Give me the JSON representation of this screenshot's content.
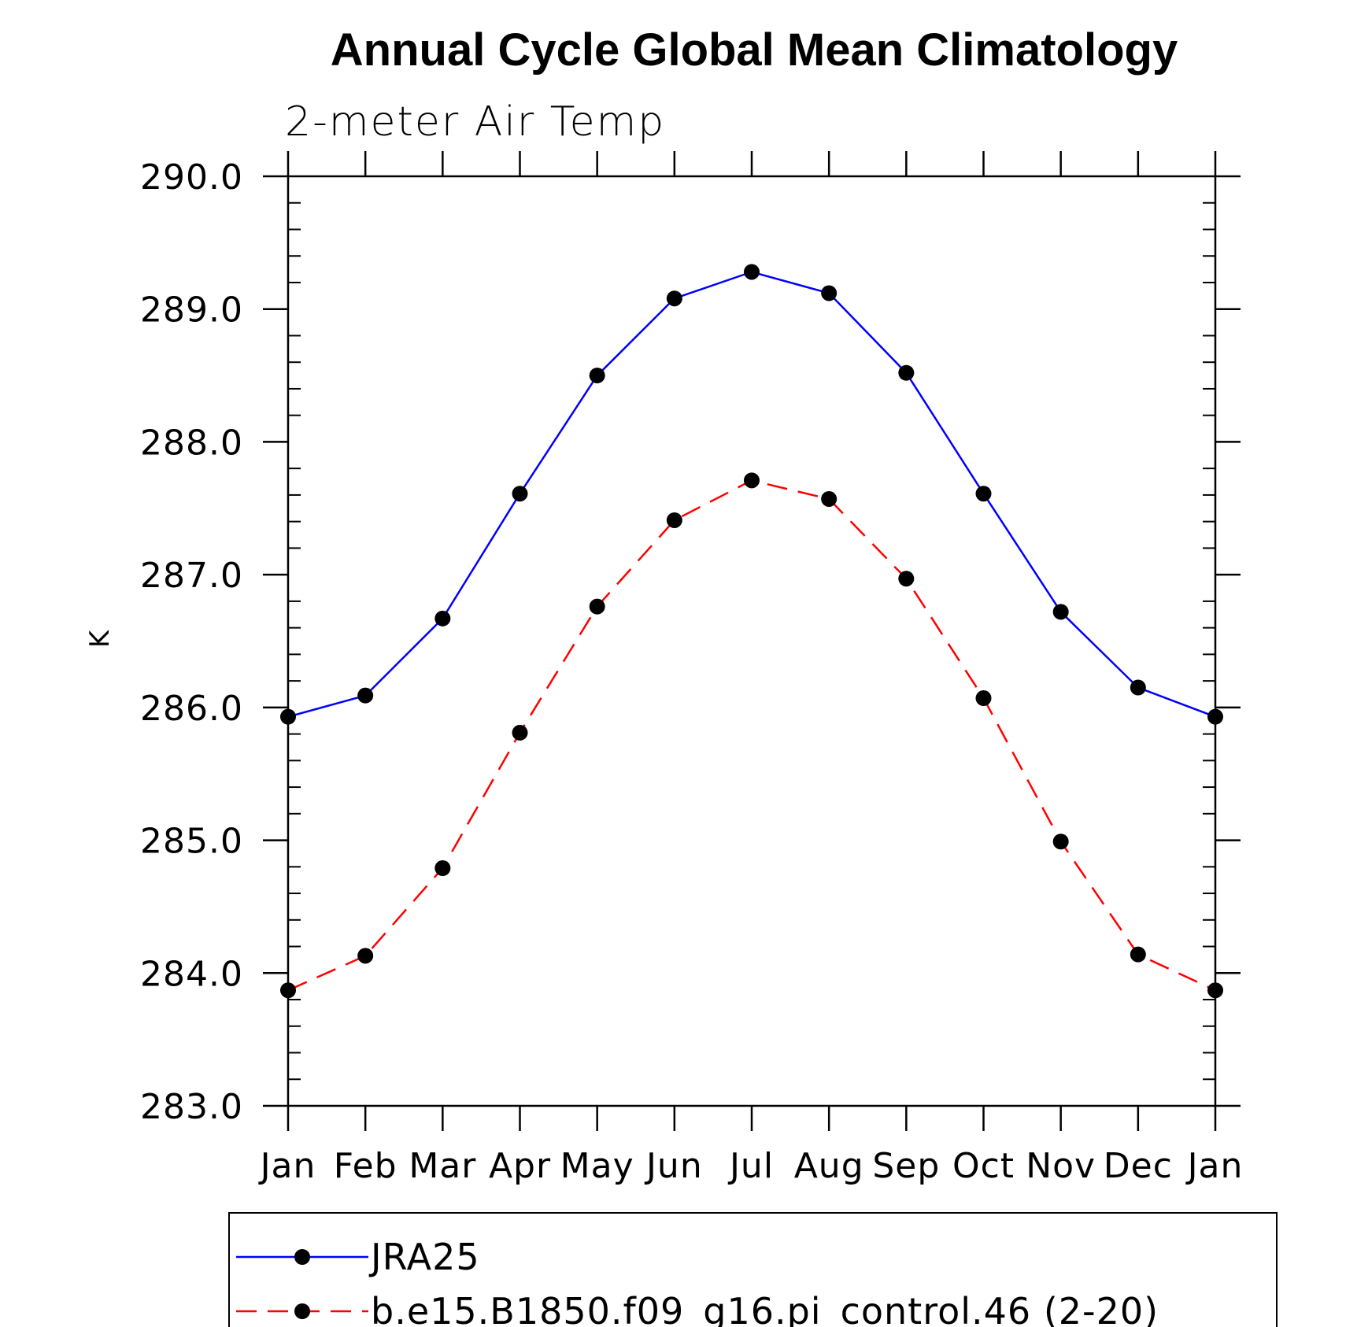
{
  "chart_data": {
    "type": "line",
    "title": "Annual Cycle Global Mean Climatology",
    "subtitle": "2-meter Air Temp",
    "ylabel": "K",
    "xlabel": "",
    "categories": [
      "Jan",
      "Feb",
      "Mar",
      "Apr",
      "May",
      "Jun",
      "Jul",
      "Aug",
      "Sep",
      "Oct",
      "Nov",
      "Dec",
      "Jan"
    ],
    "ylim": [
      283.0,
      290.0
    ],
    "yticks": [
      "283.0",
      "284.0",
      "285.0",
      "286.0",
      "287.0",
      "288.0",
      "289.0",
      "290.0"
    ],
    "series": [
      {
        "name": "JRA25",
        "color": "#0000ff",
        "dash": "solid",
        "marker": "filled-circle",
        "values": [
          285.93,
          286.09,
          286.67,
          287.61,
          288.5,
          289.08,
          289.28,
          289.12,
          288.52,
          287.61,
          286.72,
          286.15,
          285.93
        ]
      },
      {
        "name": "b.e15.B1850.f09_g16.pi_control.46 (2-20)",
        "color": "#ff0000",
        "dash": "dashed",
        "marker": "filled-circle",
        "values": [
          283.87,
          284.13,
          284.79,
          285.81,
          286.76,
          287.41,
          287.71,
          287.57,
          286.97,
          286.07,
          284.99,
          284.14,
          283.87
        ]
      }
    ],
    "legend_position": "bottom"
  }
}
